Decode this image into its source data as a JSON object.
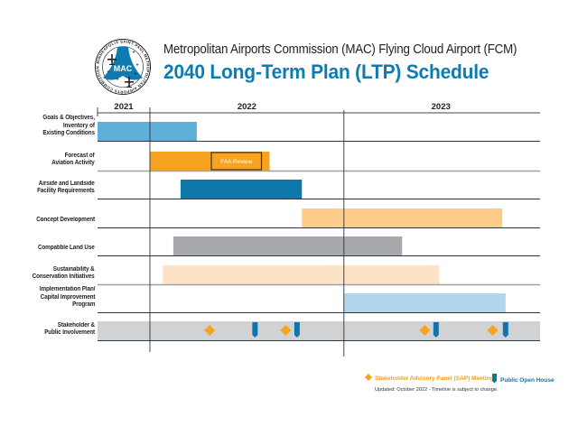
{
  "header": {
    "logo_text": "MAC",
    "logo_ring_text": "MINNEAPOLIS SAINT PAUL METROPOLITAN AIRPORTS COMMISSION",
    "subtitle": "Metropolitan Airports Commission (MAC) Flying Cloud Airport (FCM)",
    "title": "2040 Long-Term Plan (LTP) Schedule"
  },
  "colors": {
    "brand_blue": "#0d7bb0",
    "goals": "#5fb0d8",
    "forecast": "#f6a321",
    "airside": "#0e78ab",
    "concept": "#fdcb8a",
    "landuse": "#a7a9ac",
    "sustainability": "#fde3c5",
    "implementation": "#b0d6ea",
    "stakeholder_band": "#d1d2d4",
    "sap_marker": "#f6a321",
    "open_house_marker": "#0e75ab"
  },
  "chart_data": {
    "type": "gantt",
    "title": "2040 Long-Term Plan (LTP) Schedule",
    "time_unit": "months since Jan 2022",
    "x_range": [
      -3.25,
      22.2
    ],
    "years": [
      {
        "label": "2021",
        "start": -3.25,
        "end": 0
      },
      {
        "label": "2022",
        "start": 0,
        "end": 12
      },
      {
        "label": "2023",
        "start": 12,
        "end": 24
      }
    ],
    "tasks": [
      {
        "label": "Goals & Objectives,\nInventory of\nExisting Conditions",
        "start": -3.25,
        "end": 2.9,
        "color_key": "goals",
        "separator": "dark"
      },
      {
        "label": "Forecast of\nAviation Activity",
        "start": 0,
        "end": 7.4,
        "color_key": "forecast",
        "separator": "gray",
        "sub_box": {
          "label": "FAA Review",
          "start": 3.8,
          "end": 6.9
        }
      },
      {
        "label": "Airside and Landside\nFacility Requirements",
        "start": 1.9,
        "end": 9.4,
        "color_key": "airside",
        "separator": "dark"
      },
      {
        "label": "Concept Development",
        "start": 9.4,
        "end": 21.8,
        "color_key": "concept",
        "separator": "dark"
      },
      {
        "label": "Compatible Land Use",
        "start": 1.45,
        "end": 15.6,
        "color_key": "landuse",
        "separator": "dark"
      },
      {
        "label": "Sustainability &\nConservation Initiatives",
        "start": 0.8,
        "end": 17.9,
        "color_key": "sustainability",
        "separator": "gray"
      },
      {
        "label": "Implementation Plan/\nCapital Improvement\nProgram",
        "start": 12,
        "end": 22,
        "color_key": "implementation",
        "separator": "dark"
      },
      {
        "label": "Stakeholder &\nPublic Involvement",
        "start": -3.25,
        "end": 22.2,
        "color_key": "stakeholder_band",
        "separator": "dark",
        "band": true
      }
    ],
    "milestones": {
      "sap_meetings": [
        3.7,
        8.4,
        17.0,
        21.2
      ],
      "public_open_houses": [
        6.5,
        9.1,
        17.7,
        22.0
      ]
    },
    "legend": [
      {
        "label": "Stakeholder Advisory Panel (SAP) Meeting",
        "marker": "diamond"
      },
      {
        "label": "Public Open House",
        "marker": "pin"
      }
    ],
    "legend_position": "bottom-right"
  },
  "legend": {
    "sap_label": "Stakeholder Advisory Panel (SAP) Meeting",
    "open_house_label": "Public Open House"
  },
  "footnote": "Updated: October 2022  -  Timeline is subject to change."
}
